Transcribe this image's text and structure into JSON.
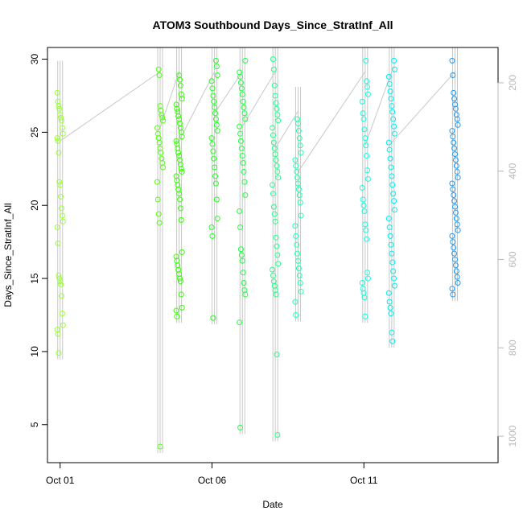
{
  "chart_data": {
    "type": "scatter",
    "title": "ATOM3 Southbound Days_Since_StratInf_All",
    "xlabel": "Date",
    "ylabel": "Days_Since_StratInf_All",
    "xlim": [
      "2016-09-30T14:00",
      "2016-10-15T10:00"
    ],
    "ylim": [
      2.4,
      30.8
    ],
    "y_ticks": [
      5,
      10,
      15,
      20,
      25,
      30
    ],
    "x_ticks": [
      {
        "date": "2016-10-01",
        "label": "Oct 01"
      },
      {
        "date": "2016-10-06",
        "label": "Oct 06"
      },
      {
        "date": "2016-10-11",
        "label": "Oct 11"
      }
    ],
    "right_axis": {
      "label": "",
      "ticks": [
        200,
        400,
        600,
        800,
        1000
      ],
      "range": [
        1060,
        120
      ],
      "color": "#b8b8b8",
      "direction": "reversed"
    },
    "grid": false,
    "legend": "none",
    "marker": "open-circle",
    "series": [
      {
        "time": "2016-10-01T00:00",
        "color": "#99ff33",
        "values": [
          27.7,
          27.1,
          26.8,
          26.6,
          26.2,
          26.0,
          25.8,
          25.3,
          24.9,
          24.6,
          24.4,
          23.6,
          21.6,
          21.4,
          20.6,
          19.8,
          19.3,
          18.9,
          18.5,
          17.4,
          15.2,
          15.0,
          14.8,
          14.6,
          13.8,
          12.6,
          11.8,
          11.5,
          11.2,
          9.9
        ]
      },
      {
        "time": "2016-10-04T07:00",
        "color": "#55ff11",
        "values": [
          29.3,
          28.9,
          26.8,
          26.5,
          26.2,
          26.0,
          25.8,
          25.3,
          24.9,
          24.6,
          24.3,
          23.9,
          23.6,
          23.2,
          22.9,
          22.6,
          21.6,
          20.4,
          19.4,
          18.8,
          3.5
        ]
      },
      {
        "time": "2016-10-04T22:00",
        "color": "#33ff00",
        "values": [
          28.9,
          28.6,
          28.2,
          27.6,
          27.3,
          26.9,
          26.6,
          26.4,
          26.1,
          25.9,
          25.6,
          25.3,
          25.0,
          24.7,
          24.4,
          24.2,
          23.9,
          23.6,
          23.4,
          23.1,
          22.8,
          22.5,
          22.3,
          22.0,
          21.7,
          21.4,
          21.1,
          20.8,
          20.4,
          19.8,
          19.0,
          16.8,
          16.5,
          16.2,
          15.9,
          15.6,
          15.3,
          15.0,
          14.8,
          13.9,
          13.0,
          12.8,
          12.4
        ]
      },
      {
        "time": "2016-10-06T02:00",
        "color": "#22ff22",
        "values": [
          29.9,
          29.5,
          28.9,
          28.5,
          28.0,
          27.5,
          27.1,
          26.7,
          26.3,
          25.9,
          25.5,
          25.1,
          24.6,
          24.2,
          23.7,
          23.2,
          22.6,
          22.0,
          21.5,
          20.4,
          19.1,
          18.5,
          17.9,
          12.3
        ]
      },
      {
        "time": "2016-10-07T00:00",
        "color": "#22ff44",
        "values": [
          29.9,
          29.1,
          28.8,
          28.4,
          28.0,
          27.6,
          27.1,
          26.7,
          26.3,
          25.9,
          25.4,
          24.9,
          24.4,
          23.9,
          23.4,
          22.9,
          22.3,
          21.6,
          20.7,
          19.6,
          18.5,
          17.0,
          16.6,
          16.2,
          15.4,
          14.7,
          14.2,
          13.9,
          12.0,
          4.8
        ]
      },
      {
        "time": "2016-10-08T02:00",
        "color": "#22ff88",
        "values": [
          30.0,
          29.3,
          28.2,
          27.5,
          27.0,
          26.6,
          26.2,
          25.8,
          25.3,
          24.8,
          24.3,
          23.9,
          23.5,
          23.1,
          22.7,
          22.3,
          21.9,
          21.4,
          20.8,
          19.9,
          19.4,
          18.9,
          17.8,
          17.2,
          16.6,
          16.0,
          15.6,
          15.2,
          14.8,
          14.5,
          14.2,
          13.9,
          9.8,
          4.3
        ]
      },
      {
        "time": "2016-10-08T20:00",
        "color": "#22ffaa",
        "values": [
          25.9,
          25.6,
          25.1,
          24.6,
          24.1,
          23.6,
          23.1,
          22.7,
          22.3,
          21.9,
          21.5,
          21.1,
          20.7,
          20.2,
          19.3,
          18.6,
          17.9,
          17.3,
          16.7,
          16.2,
          15.7,
          15.2,
          14.7,
          14.1,
          13.4,
          12.5
        ]
      },
      {
        "time": "2016-10-11T01:00",
        "color": "#11ffdd",
        "values": [
          29.9,
          28.5,
          28.1,
          27.6,
          27.1,
          26.3,
          25.9,
          25.2,
          24.6,
          24.1,
          23.4,
          22.4,
          21.8,
          21.2,
          20.4,
          20.0,
          19.6,
          18.7,
          18.3,
          17.7,
          15.4,
          15.0,
          14.7,
          14.3,
          14.0,
          13.7,
          12.4
        ]
      },
      {
        "time": "2016-10-11T22:00",
        "color": "#00eeee",
        "values": [
          29.9,
          29.3,
          28.8,
          28.3,
          27.8,
          27.3,
          26.8,
          26.4,
          25.9,
          25.4,
          24.9,
          24.3,
          23.8,
          23.2,
          22.6,
          22.0,
          21.4,
          20.8,
          20.3,
          19.7,
          19.1,
          18.5,
          17.9,
          17.3,
          16.7,
          16.1,
          15.5,
          15.0,
          14.5,
          14.0,
          13.4,
          13.0,
          12.6,
          11.3,
          10.7
        ]
      },
      {
        "time": "2016-10-14T00:00",
        "color": "#2299ee",
        "values": [
          29.9,
          28.9,
          27.7,
          27.3,
          26.9,
          26.6,
          26.2,
          25.9,
          25.5,
          25.1,
          24.7,
          24.3,
          23.9,
          23.5,
          23.1,
          22.7,
          22.3,
          21.9,
          21.5,
          21.1,
          20.7,
          20.3,
          19.9,
          19.5,
          19.1,
          18.7,
          18.3,
          17.9,
          17.5,
          17.1,
          16.7,
          16.3,
          15.9,
          15.5,
          15.1,
          14.7,
          14.3,
          13.9
        ]
      }
    ]
  }
}
